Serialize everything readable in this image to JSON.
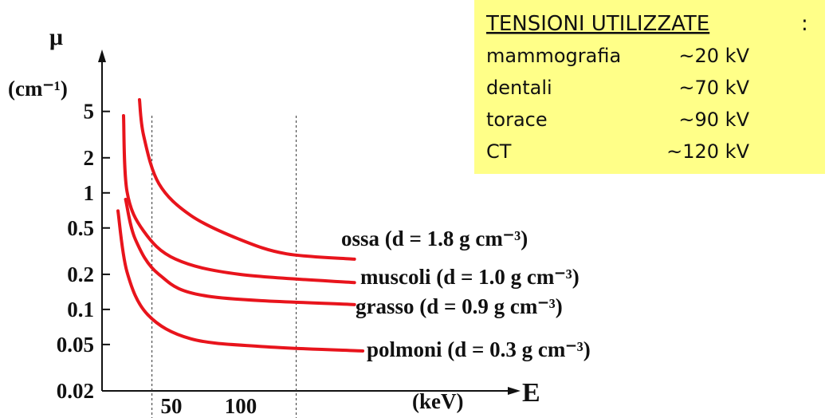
{
  "chart_data": {
    "type": "line",
    "y_label": "μ",
    "y_unit": "(cm⁻¹)",
    "x_label": "E",
    "x_unit": "(keV)",
    "log_y": true,
    "xlim": [
      0,
      300
    ],
    "ylim": [
      0.02,
      6.3
    ],
    "xticks": [
      50,
      100
    ],
    "yticks": [
      5,
      2,
      1,
      0.5,
      0.2,
      0.1,
      0.05,
      0.02
    ],
    "vlines": [
      36,
      140
    ],
    "series": [
      {
        "name": "ossa (d = 1.8 g cm⁻³)",
        "color": "#e8141c",
        "x": [
          27,
          30,
          41,
          64,
          99,
          133,
          182
        ],
        "values": [
          6.3,
          3.1,
          1.2,
          0.64,
          0.4,
          0.3,
          0.27
        ]
      },
      {
        "name": "muscoli (d = 1.0 g cm⁻³)",
        "color": "#e8141c",
        "x": [
          15.5,
          18,
          30,
          53,
          99,
          182
        ],
        "values": [
          4.6,
          1.03,
          0.47,
          0.27,
          0.2,
          0.17
        ]
      },
      {
        "name": "grasso (d = 0.9 g cm⁻³)",
        "color": "#e8141c",
        "x": [
          17,
          24,
          41,
          76,
          182
        ],
        "values": [
          0.88,
          0.4,
          0.2,
          0.13,
          0.11
        ]
      },
      {
        "name": "polmoni (d = 0.3 g cm⁻³)",
        "color": "#e8141c",
        "x": [
          11.5,
          18,
          33,
          64,
          116,
          188
        ],
        "values": [
          0.7,
          0.21,
          0.09,
          0.056,
          0.048,
          0.044
        ]
      }
    ],
    "annotation": {
      "title": "TENSIONI UTILIZZATE",
      "colon": ":",
      "rows": [
        [
          "mammografia",
          "~20 kV"
        ],
        [
          "dentali",
          "~70 kV"
        ],
        [
          "torace",
          "~90 kV"
        ],
        [
          "CT",
          "~120 kV"
        ]
      ]
    }
  }
}
